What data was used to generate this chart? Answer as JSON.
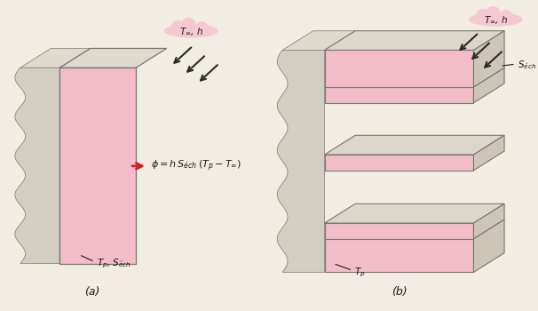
{
  "title_a": "(a)",
  "title_b": "(b)",
  "bg_color": "#f2ede3",
  "wall_face_color": "#f2bcc8",
  "wall_side_color": "#d4cdc2",
  "wall_top_color": "#e0d9ce",
  "fin_face_color": "#f2bcc8",
  "fin_top_color": "#ddd6ca",
  "fin_side_color": "#ccc5b8",
  "base_wall_color": "#d4cdc2",
  "cloud_color": "#f5c8d4",
  "arrow_color": "#2a2a2a",
  "text_color": "#1a1a1a",
  "red_arrow_color": "#d42020",
  "label_Tinf_h_a": "$T_{\\infty}$, $h$",
  "label_Tinf_h_b": "$T_{\\infty}$, $h$",
  "label_phi": "$\\phi = h\\, S_{\\acute{e}ch}\\,(T_p - T_\\infty)$",
  "label_Tp_Sech": "$T_p$, $S_{\\acute{e}ch}$",
  "label_Sech_b": "$S_{\\acute{e}ch}$",
  "label_Tp_b": "$T_p$"
}
